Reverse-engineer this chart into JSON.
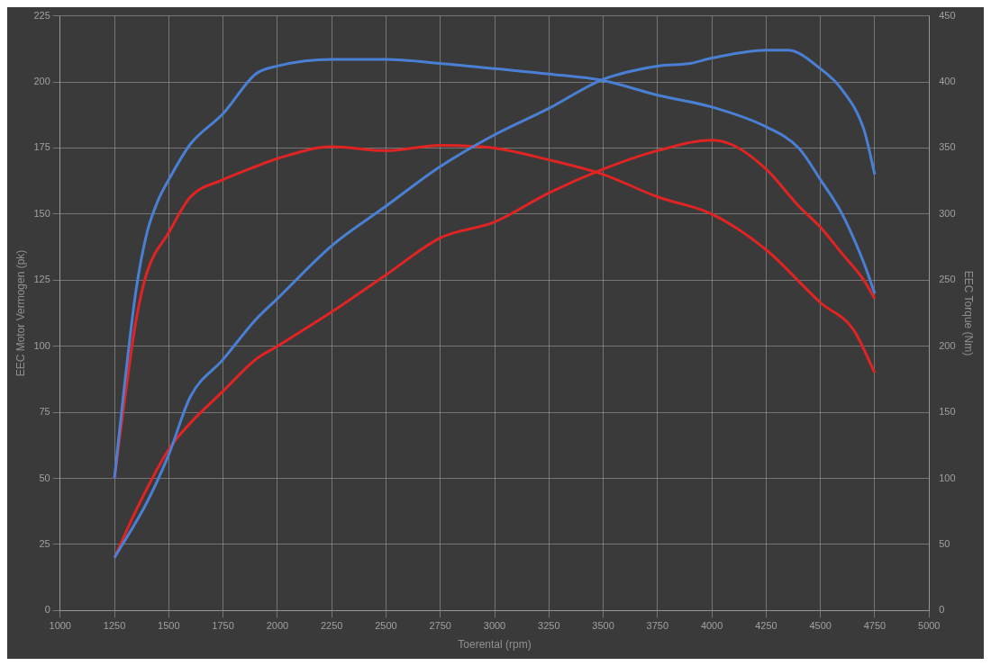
{
  "chart_data": {
    "type": "line",
    "xlabel": "Toerental (rpm)",
    "ylabel": "EEC Motor Vermogen (pk)",
    "y2label": "EEC Torque (Nm)",
    "xlim": [
      1000,
      5000
    ],
    "xticks": [
      1000,
      1250,
      1500,
      1750,
      2000,
      2250,
      2500,
      2750,
      3000,
      3250,
      3500,
      3750,
      4000,
      4250,
      4500,
      4750,
      5000
    ],
    "ylim": [
      0,
      225
    ],
    "yticks": [
      0,
      25,
      50,
      75,
      100,
      125,
      150,
      175,
      200,
      225
    ],
    "y2lim": [
      0,
      450
    ],
    "y2ticks": [
      0,
      50,
      100,
      150,
      200,
      250,
      300,
      350,
      400,
      450
    ],
    "grid": true,
    "legend": false,
    "marker": "none",
    "line_style": "solid",
    "series": [
      {
        "color": "#4a80d4",
        "axis": "y2",
        "x": [
          1250,
          1300,
          1350,
          1400,
          1450,
          1500,
          1600,
          1750,
          1900,
          2000,
          2250,
          2500,
          2750,
          3000,
          3250,
          3500,
          3750,
          4000,
          4250,
          4400,
          4500,
          4600,
          4700,
          4750
        ],
        "values": [
          100,
          176,
          243,
          286,
          310,
          326,
          353,
          376,
          406,
          412,
          417,
          417,
          414,
          410,
          406,
          401,
          390,
          381,
          366,
          350,
          326,
          300,
          263,
          240
        ]
      },
      {
        "color": "#4a80d4",
        "x": [
          1250,
          1400,
          1500,
          1600,
          1750,
          1900,
          2000,
          2250,
          2500,
          2750,
          3000,
          3250,
          3500,
          3750,
          3900,
          4000,
          4250,
          4350,
          4500,
          4600,
          4700,
          4750
        ],
        "values": [
          20,
          41,
          59,
          81,
          95,
          110,
          118,
          138,
          153,
          168,
          180,
          190,
          201,
          206,
          207,
          209,
          212,
          212,
          205,
          197,
          182,
          165
        ]
      },
      {
        "color": "#e02424",
        "axis": "y2",
        "x": [
          1250,
          1300,
          1350,
          1400,
          1500,
          1600,
          1750,
          1900,
          2000,
          2250,
          2500,
          2750,
          3000,
          3250,
          3500,
          3750,
          4000,
          4250,
          4500,
          4650,
          4750
        ],
        "values": [
          100,
          163,
          220,
          256,
          286,
          313,
          326,
          336,
          342,
          351,
          348,
          352,
          350,
          341,
          330,
          313,
          300,
          273,
          233,
          213,
          180
        ]
      },
      {
        "color": "#e02424",
        "x": [
          1250,
          1350,
          1500,
          1600,
          1750,
          1900,
          2000,
          2250,
          2500,
          2750,
          3000,
          3250,
          3500,
          3750,
          4000,
          4100,
          4250,
          4400,
          4500,
          4600,
          4700,
          4750
        ],
        "values": [
          20,
          38,
          61,
          71,
          83,
          95,
          100,
          113,
          127,
          141,
          147,
          158,
          167,
          174,
          178,
          176,
          167,
          153,
          145,
          135,
          125,
          118
        ]
      }
    ]
  }
}
